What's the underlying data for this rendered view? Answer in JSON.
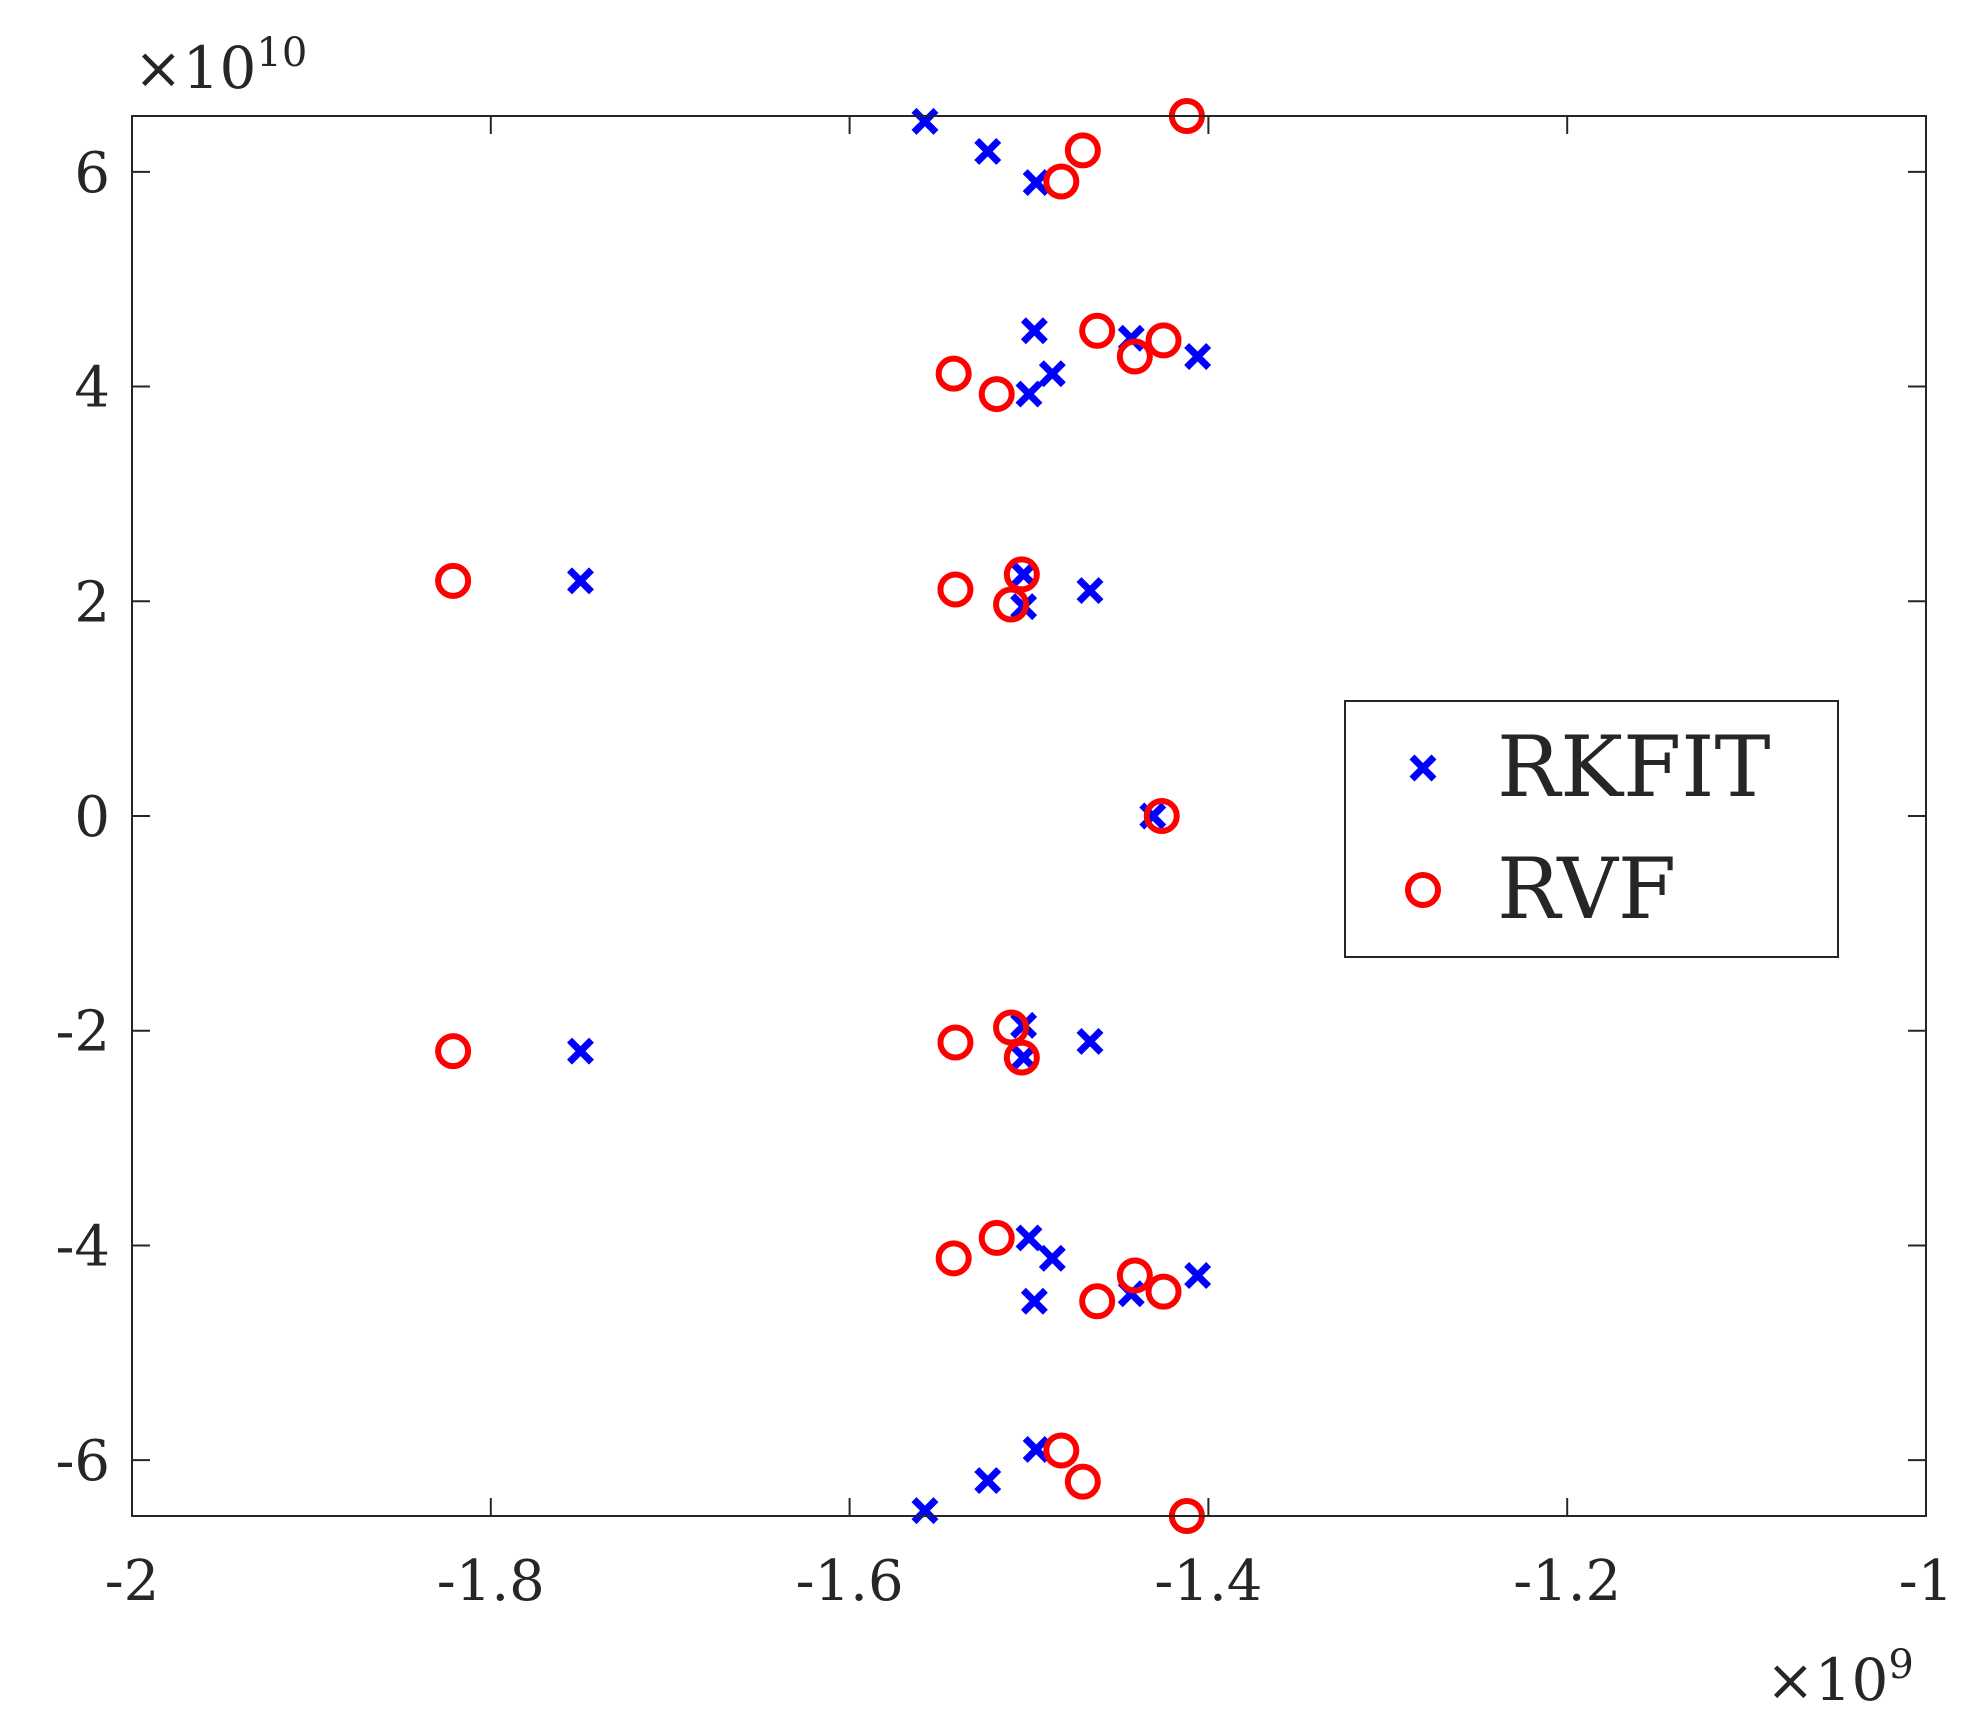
{
  "chart_data": {
    "type": "scatter",
    "title": "",
    "xlabel": "",
    "ylabel": "",
    "x_exponent_label": "×10^9",
    "y_exponent_label": "×10^10",
    "x_exponent": "9",
    "y_exponent": "10",
    "x_multiplier": "×10",
    "y_multiplier": "×10",
    "xlim": [
      -2,
      -1
    ],
    "ylim": [
      -6.52,
      6.52
    ],
    "x_ticks": [
      -2,
      -1.8,
      -1.6,
      -1.4,
      -1.2,
      -1
    ],
    "x_tick_labels": [
      "-2",
      "-1.8",
      "-1.6",
      "-1.4",
      "-1.2",
      "-1"
    ],
    "y_ticks": [
      -6,
      -4,
      -2,
      0,
      2,
      4,
      6
    ],
    "y_tick_labels": [
      "-6",
      "-4",
      "-2",
      "0",
      "2",
      "4",
      "6"
    ],
    "grid": false,
    "legend_position": "right",
    "series": [
      {
        "name": "RKFIT",
        "marker": "x",
        "color": "#0000ff",
        "points": [
          [
            -1.558,
            6.47
          ],
          [
            -1.523,
            6.19
          ],
          [
            -1.496,
            5.9
          ],
          [
            -1.497,
            4.52
          ],
          [
            -1.443,
            4.45
          ],
          [
            -1.406,
            4.28
          ],
          [
            -1.487,
            4.12
          ],
          [
            -1.5,
            3.93
          ],
          [
            -1.75,
            2.19
          ],
          [
            -1.503,
            2.25
          ],
          [
            -1.503,
            1.95
          ],
          [
            -1.466,
            2.1
          ],
          [
            -1.431,
            0.0
          ],
          [
            -1.75,
            -2.19
          ],
          [
            -1.503,
            -2.25
          ],
          [
            -1.503,
            -1.95
          ],
          [
            -1.466,
            -2.1
          ],
          [
            -1.497,
            -4.52
          ],
          [
            -1.443,
            -4.45
          ],
          [
            -1.406,
            -4.28
          ],
          [
            -1.487,
            -4.12
          ],
          [
            -1.5,
            -3.93
          ],
          [
            -1.558,
            -6.47
          ],
          [
            -1.523,
            -6.19
          ],
          [
            -1.496,
            -5.9
          ]
        ]
      },
      {
        "name": "RVF",
        "marker": "o",
        "color": "#ff0000",
        "points": [
          [
            -1.412,
            6.52
          ],
          [
            -1.47,
            6.2
          ],
          [
            -1.482,
            5.91
          ],
          [
            -1.462,
            4.52
          ],
          [
            -1.425,
            4.43
          ],
          [
            -1.441,
            4.28
          ],
          [
            -1.542,
            4.12
          ],
          [
            -1.518,
            3.93
          ],
          [
            -1.821,
            2.19
          ],
          [
            -1.541,
            2.11
          ],
          [
            -1.504,
            2.25
          ],
          [
            -1.51,
            1.97
          ],
          [
            -1.426,
            0.0
          ],
          [
            -1.821,
            -2.19
          ],
          [
            -1.541,
            -2.11
          ],
          [
            -1.504,
            -2.25
          ],
          [
            -1.51,
            -1.97
          ],
          [
            -1.462,
            -4.52
          ],
          [
            -1.425,
            -4.43
          ],
          [
            -1.441,
            -4.28
          ],
          [
            -1.542,
            -4.12
          ],
          [
            -1.518,
            -3.93
          ],
          [
            -1.412,
            -6.52
          ],
          [
            -1.47,
            -6.2
          ],
          [
            -1.482,
            -5.91
          ]
        ]
      }
    ]
  }
}
